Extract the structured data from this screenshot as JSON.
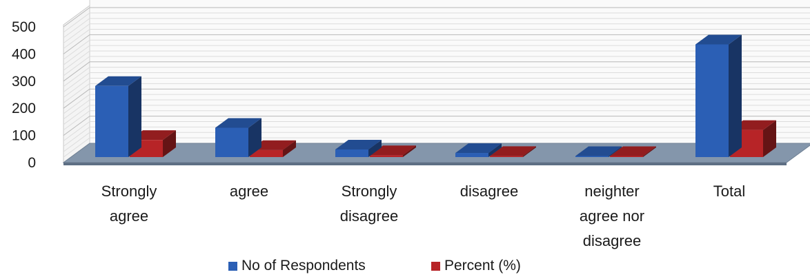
{
  "chart_data": {
    "type": "bar",
    "title": "",
    "xlabel": "",
    "ylabel": "",
    "ylim": [
      0,
      500
    ],
    "yticks": [
      0,
      100,
      200,
      300,
      400,
      500
    ],
    "grid": true,
    "legend_position": "bottom",
    "categories": [
      [
        "Strongly",
        "agree"
      ],
      [
        "agree"
      ],
      [
        "Strongly",
        "disagree"
      ],
      [
        "disagree"
      ],
      [
        "neighter",
        "agree nor",
        "disagree"
      ],
      [
        "Total"
      ]
    ],
    "series": [
      {
        "name": "No of Respondents",
        "color": "#2b5fb5",
        "values": [
          262,
          108,
          28,
          15,
          2,
          415
        ]
      },
      {
        "name": "Percent (%)",
        "color": "#b72427",
        "values": [
          63,
          26,
          7,
          4,
          0.5,
          100
        ]
      }
    ]
  }
}
